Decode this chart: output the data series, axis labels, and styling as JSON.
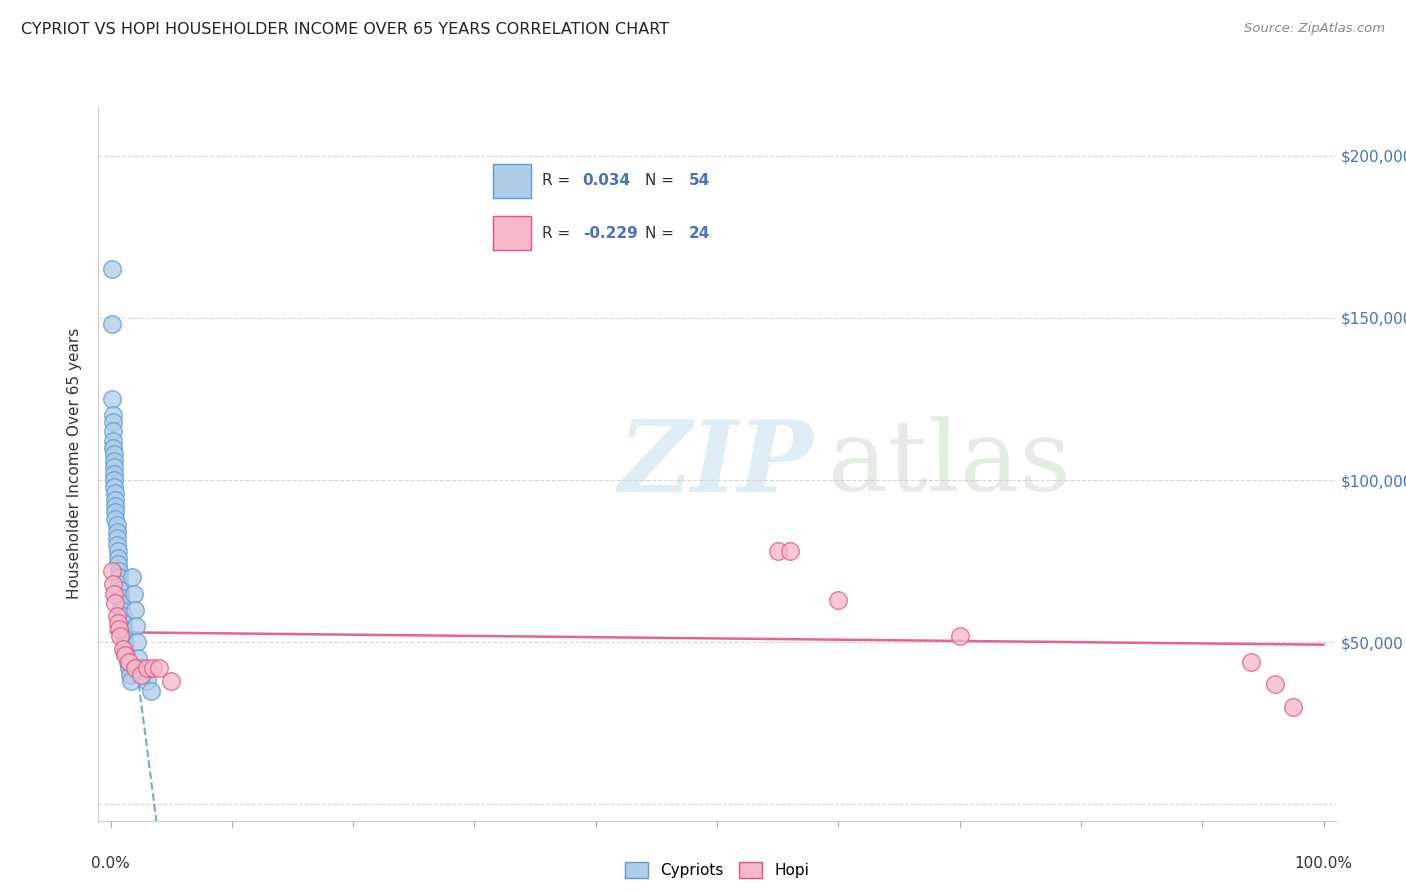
{
  "title": "CYPRIOT VS HOPI HOUSEHOLDER INCOME OVER 65 YEARS CORRELATION CHART",
  "source": "Source: ZipAtlas.com",
  "ylabel": "Householder Income Over 65 years",
  "cypriot_R": 0.034,
  "cypriot_N": 54,
  "hopi_R": -0.229,
  "hopi_N": 24,
  "yticks": [
    0,
    50000,
    100000,
    150000,
    200000
  ],
  "ytick_labels_right": [
    "",
    "$50,000",
    "$100,000",
    "$150,000",
    "$200,000"
  ],
  "cypriot_color": "#aecde8",
  "cypriot_edge_color": "#5b9bd5",
  "hopi_color": "#f4b8c8",
  "hopi_edge_color": "#e8537a",
  "cypriot_line_color": "#5b9bd5",
  "hopi_line_color": "#e8537a",
  "cypriot_x": [
    0.001,
    0.001,
    0.001,
    0.002,
    0.002,
    0.002,
    0.002,
    0.002,
    0.003,
    0.003,
    0.003,
    0.003,
    0.003,
    0.003,
    0.004,
    0.004,
    0.004,
    0.004,
    0.004,
    0.005,
    0.005,
    0.005,
    0.005,
    0.006,
    0.006,
    0.006,
    0.007,
    0.007,
    0.007,
    0.008,
    0.008,
    0.009,
    0.009,
    0.01,
    0.01,
    0.01,
    0.011,
    0.011,
    0.012,
    0.013,
    0.014,
    0.015,
    0.016,
    0.017,
    0.018,
    0.019,
    0.02,
    0.021,
    0.022,
    0.023,
    0.025,
    0.027,
    0.03,
    0.033
  ],
  "cypriot_y": [
    165000,
    148000,
    125000,
    120000,
    118000,
    115000,
    112000,
    110000,
    108000,
    106000,
    104000,
    102000,
    100000,
    98000,
    96000,
    94000,
    92000,
    90000,
    88000,
    86000,
    84000,
    82000,
    80000,
    78000,
    76000,
    74000,
    72000,
    70000,
    68000,
    66000,
    64000,
    62000,
    60000,
    58000,
    56000,
    54000,
    52000,
    50000,
    48000,
    46000,
    44000,
    42000,
    40000,
    38000,
    70000,
    65000,
    60000,
    55000,
    50000,
    45000,
    42000,
    40000,
    38000,
    35000
  ],
  "hopi_x": [
    0.001,
    0.002,
    0.003,
    0.004,
    0.005,
    0.006,
    0.007,
    0.008,
    0.01,
    0.012,
    0.015,
    0.02,
    0.025,
    0.03,
    0.035,
    0.04,
    0.05,
    0.55,
    0.56,
    0.6,
    0.7,
    0.94,
    0.96,
    0.975
  ],
  "hopi_y": [
    72000,
    68000,
    65000,
    62000,
    58000,
    56000,
    54000,
    52000,
    48000,
    46000,
    44000,
    42000,
    40000,
    42000,
    42000,
    42000,
    38000,
    78000,
    78000,
    63000,
    52000,
    44000,
    37000,
    30000
  ]
}
